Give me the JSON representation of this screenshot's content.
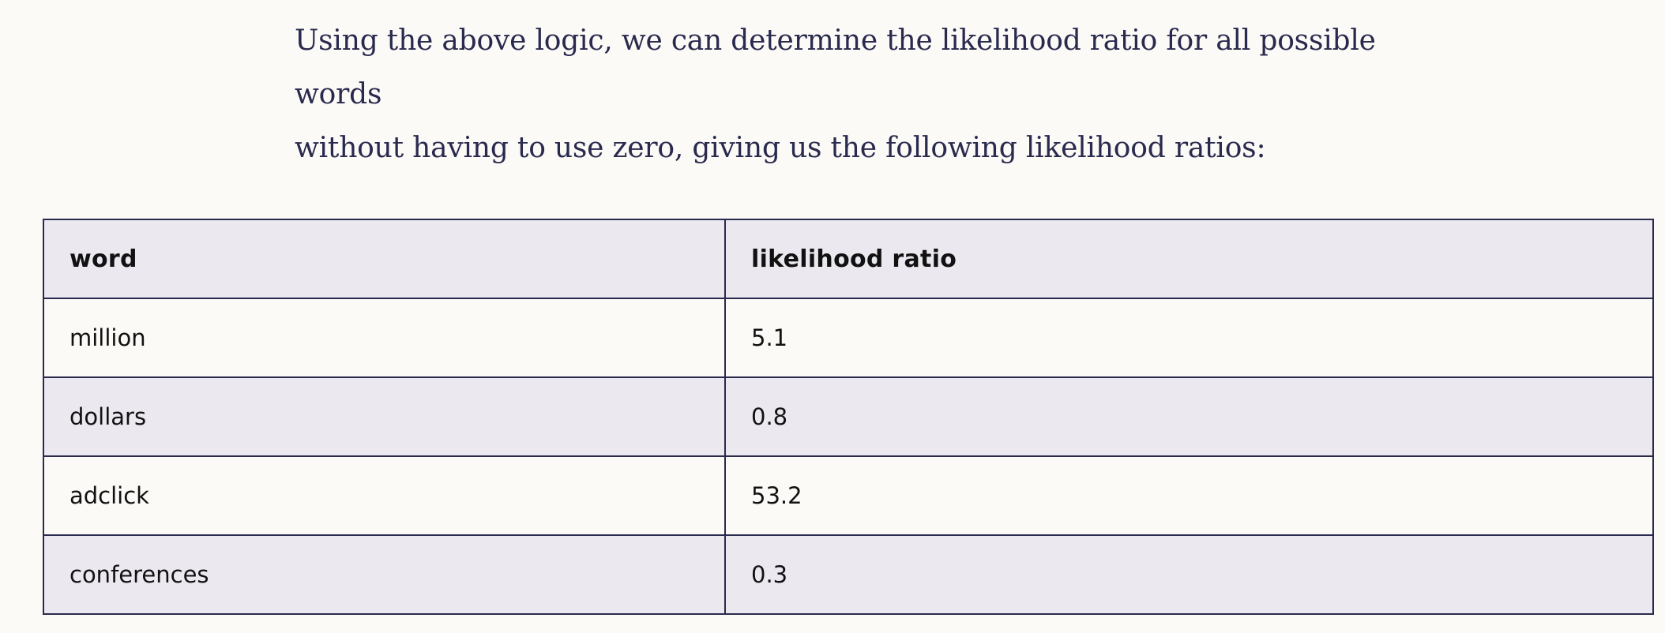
{
  "intro": {
    "line1": "Using the above logic, we can determine the likelihood ratio for all possible words",
    "line2": "without having to use zero, giving us the following likelihood ratios:"
  },
  "table": {
    "headers": [
      "word",
      "likelihood ratio"
    ],
    "rows": [
      [
        "million",
        "5.1"
      ],
      [
        "dollars",
        "0.8"
      ],
      [
        "adclick",
        "53.2"
      ],
      [
        "conferences",
        "0.3"
      ]
    ]
  }
}
